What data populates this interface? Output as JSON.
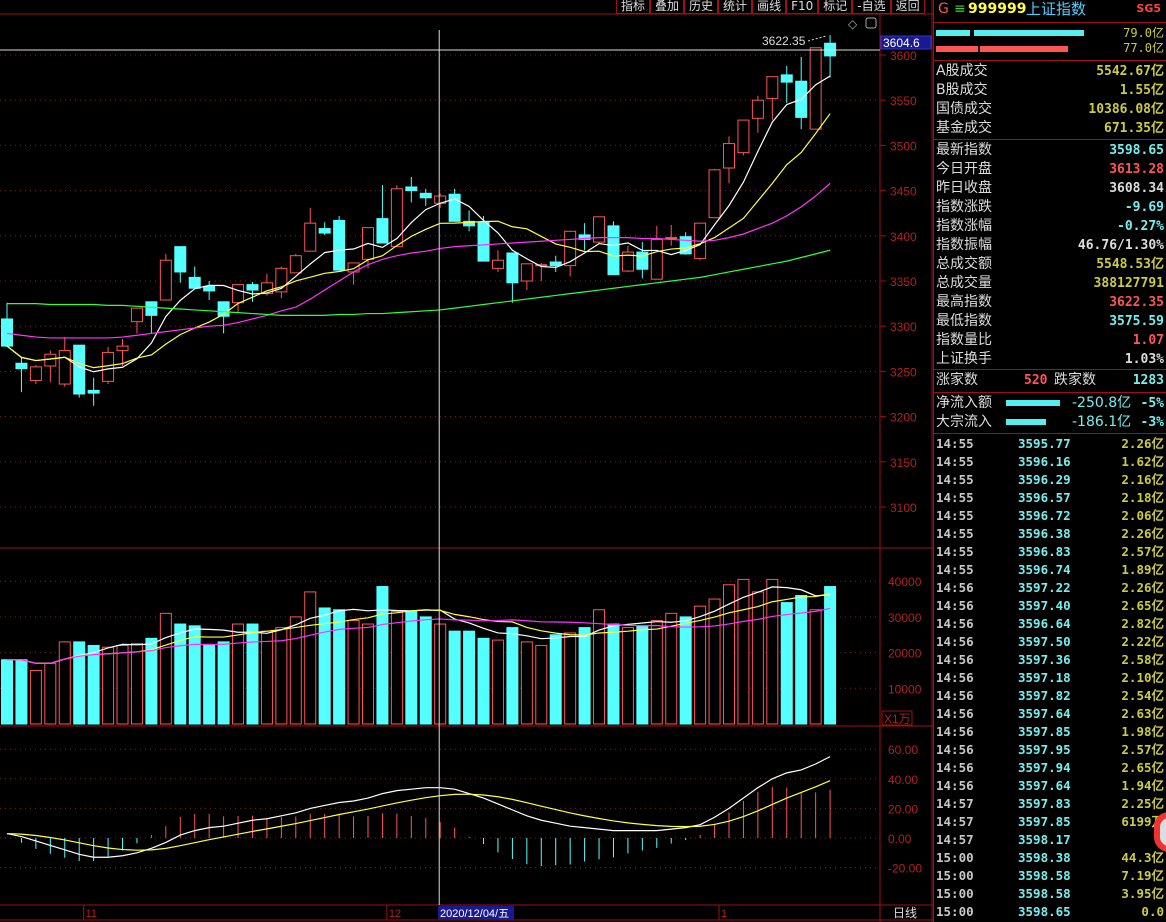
{
  "menu": [
    "指标",
    "叠加",
    "历史",
    "统计",
    "画线",
    "F10",
    "标记",
    "-自选",
    "返回"
  ],
  "header": {
    "market_icon": "G",
    "menu_icon": "≡",
    "code": "999999",
    "name": "上证指数",
    "tag": "SG5"
  },
  "flow_bars": [
    {
      "value": "79.0亿",
      "color": "#5ee"
    },
    {
      "value": "77.0亿",
      "color": "#f55"
    }
  ],
  "turnover": [
    {
      "label": "A股成交",
      "value": "5542.67亿"
    },
    {
      "label": "B股成交",
      "value": "1.55亿"
    },
    {
      "label": "国债成交",
      "value": "10386.08亿"
    },
    {
      "label": "基金成交",
      "value": "671.35亿"
    }
  ],
  "stats": [
    {
      "label": "最新指数",
      "value": "3598.65",
      "color": "#7ee"
    },
    {
      "label": "今日开盘",
      "value": "3613.28",
      "color": "#f55"
    },
    {
      "label": "昨日收盘",
      "value": "3608.34",
      "color": "#ddd"
    },
    {
      "label": "指数涨跌",
      "value": "-9.69",
      "color": "#7ee"
    },
    {
      "label": "指数涨幅",
      "value": "-0.27%",
      "color": "#7ee"
    },
    {
      "label": "指数振幅",
      "value": "46.76/1.30%",
      "color": "#ddd"
    },
    {
      "label": "总成交额",
      "value": "5548.53亿",
      "color": "#cc4"
    },
    {
      "label": "总成交量",
      "value": "388127791",
      "color": "#cc4"
    },
    {
      "label": "最高指数",
      "value": "3622.35",
      "color": "#f55"
    },
    {
      "label": "最低指数",
      "value": "3575.59",
      "color": "#7ee"
    },
    {
      "label": "指数量比",
      "value": "1.07",
      "color": "#f55"
    },
    {
      "label": "上证换手",
      "value": "1.03%",
      "color": "#ddd"
    }
  ],
  "breadth": {
    "up_label": "涨家数",
    "up": "520",
    "down_label": "跌家数",
    "down": "1283"
  },
  "flows": [
    {
      "label": "净流入额",
      "value": "-250.8亿",
      "pct": "-5%"
    },
    {
      "label": "大宗流入",
      "value": "-186.1亿",
      "pct": "-3%"
    }
  ],
  "ticks": [
    [
      "14:55",
      "3595.77",
      "2.26亿"
    ],
    [
      "14:55",
      "3596.16",
      "1.62亿"
    ],
    [
      "14:55",
      "3596.29",
      "2.16亿"
    ],
    [
      "14:55",
      "3596.57",
      "2.18亿"
    ],
    [
      "14:55",
      "3596.72",
      "2.06亿"
    ],
    [
      "14:55",
      "3596.38",
      "2.26亿"
    ],
    [
      "14:55",
      "3596.83",
      "2.57亿"
    ],
    [
      "14:55",
      "3596.74",
      "1.89亿"
    ],
    [
      "14:56",
      "3597.22",
      "2.26亿"
    ],
    [
      "14:56",
      "3597.40",
      "2.65亿"
    ],
    [
      "14:56",
      "3596.64",
      "2.82亿"
    ],
    [
      "14:56",
      "3597.50",
      "2.22亿"
    ],
    [
      "14:56",
      "3597.36",
      "2.58亿"
    ],
    [
      "14:56",
      "3597.18",
      "2.10亿"
    ],
    [
      "14:56",
      "3597.82",
      "2.54亿"
    ],
    [
      "14:56",
      "3597.64",
      "2.63亿"
    ],
    [
      "14:56",
      "3597.85",
      "1.98亿"
    ],
    [
      "14:56",
      "3597.95",
      "2.57亿"
    ],
    [
      "14:56",
      "3597.94",
      "2.65亿"
    ],
    [
      "14:56",
      "3597.64",
      "1.94亿"
    ],
    [
      "14:57",
      "3597.83",
      "2.25亿"
    ],
    [
      "14:57",
      "3597.85",
      "6199万"
    ],
    [
      "14:57",
      "3598.17",
      "0"
    ],
    [
      "15:00",
      "3598.38",
      "44.3亿"
    ],
    [
      "15:00",
      "3598.58",
      "7.19亿"
    ],
    [
      "15:00",
      "3598.58",
      "3.95亿"
    ],
    [
      "15:00",
      "3598.65",
      "0.0"
    ]
  ],
  "chart_data": {
    "type": "candlestick",
    "period_label": "日线",
    "up_color": "#f55",
    "down_color": "#5ff",
    "high_label": "3622.35",
    "last_price_label": "3604.6",
    "cursor_date": "2020/12/04/五",
    "month_labels": [
      {
        "label": "11",
        "index": 6
      },
      {
        "label": "12",
        "index": 27
      },
      {
        "label": "1",
        "index": 50
      }
    ],
    "cursor_index": 30,
    "price_axis": {
      "ticks": [
        3100,
        3150,
        3200,
        3250,
        3300,
        3350,
        3400,
        3450,
        3500,
        3550,
        3600
      ],
      "grid": true
    },
    "ohlc": [
      [
        3308,
        3326,
        3277,
        3278
      ],
      [
        3259,
        3265,
        3227,
        3253
      ],
      [
        3240,
        3257,
        3236,
        3255
      ],
      [
        3256,
        3273,
        3238,
        3269
      ],
      [
        3236,
        3288,
        3233,
        3273
      ],
      [
        3279,
        3279,
        3221,
        3225
      ],
      [
        3229,
        3243,
        3212,
        3226
      ],
      [
        3239,
        3277,
        3236,
        3271
      ],
      [
        3273,
        3286,
        3256,
        3278
      ],
      [
        3305,
        3320,
        3292,
        3320
      ],
      [
        3327,
        3327,
        3292,
        3312
      ],
      [
        3329,
        3380,
        3329,
        3373
      ],
      [
        3388,
        3388,
        3348,
        3360
      ],
      [
        3354,
        3366,
        3342,
        3342
      ],
      [
        3344,
        3350,
        3329,
        3339
      ],
      [
        3327,
        3327,
        3292,
        3311
      ],
      [
        3326,
        3346,
        3315,
        3346
      ],
      [
        3346,
        3349,
        3327,
        3340
      ],
      [
        3336,
        3358,
        3334,
        3348
      ],
      [
        3338,
        3366,
        3331,
        3364
      ],
      [
        3359,
        3380,
        3359,
        3378
      ],
      [
        3383,
        3431,
        3383,
        3414
      ],
      [
        3408,
        3415,
        3401,
        3403
      ],
      [
        3417,
        3422,
        3362,
        3362
      ],
      [
        3360,
        3370,
        3346,
        3370
      ],
      [
        3374,
        3409,
        3364,
        3409
      ],
      [
        3419,
        3456,
        3392,
        3392
      ],
      [
        3388,
        3456,
        3388,
        3452
      ],
      [
        3454,
        3465,
        3437,
        3450
      ],
      [
        3447,
        3452,
        3433,
        3442
      ],
      [
        3436,
        3447,
        3431,
        3444
      ],
      [
        3446,
        3452,
        3416,
        3416
      ],
      [
        3416,
        3428,
        3405,
        3411
      ],
      [
        3415,
        3422,
        3372,
        3372
      ],
      [
        3364,
        3384,
        3360,
        3373
      ],
      [
        3381,
        3381,
        3326,
        3348
      ],
      [
        3350,
        3369,
        3340,
        3369
      ],
      [
        3367,
        3370,
        3350,
        3368
      ],
      [
        3371,
        3378,
        3360,
        3367
      ],
      [
        3367,
        3405,
        3355,
        3405
      ],
      [
        3401,
        3414,
        3384,
        3396
      ],
      [
        3393,
        3421,
        3391,
        3421
      ],
      [
        3411,
        3416,
        3357,
        3357
      ],
      [
        3361,
        3389,
        3360,
        3382
      ],
      [
        3382,
        3393,
        3353,
        3363
      ],
      [
        3352,
        3411,
        3352,
        3396
      ],
      [
        3397,
        3412,
        3389,
        3398
      ],
      [
        3399,
        3404,
        3379,
        3380
      ],
      [
        3375,
        3414,
        3373,
        3414
      ],
      [
        3420,
        3474,
        3420,
        3473
      ],
      [
        3475,
        3510,
        3458,
        3502
      ],
      [
        3492,
        3528,
        3489,
        3528
      ],
      [
        3530,
        3555,
        3514,
        3550
      ],
      [
        3552,
        3576,
        3528,
        3576
      ],
      [
        3578,
        3588,
        3547,
        3570
      ],
      [
        3571,
        3598,
        3518,
        3531
      ],
      [
        3518,
        3608,
        3518,
        3608
      ],
      [
        3613,
        3622,
        3575,
        3599
      ]
    ],
    "ma20": [
      3292,
      3290,
      3288,
      3287,
      3287,
      3287,
      3287,
      3287,
      3288,
      3290,
      3292,
      3294,
      3296,
      3298,
      3300,
      3301,
      3304,
      3308,
      3312,
      3317,
      3321,
      3330,
      3340,
      3350,
      3360,
      3368,
      3374,
      3378,
      3381,
      3383,
      3386,
      3388,
      3389,
      3390,
      3391,
      3392,
      3393,
      3394,
      3395,
      3396,
      3397,
      3398,
      3398,
      3398,
      3397,
      3397,
      3396,
      3395,
      3394,
      3395,
      3398,
      3402,
      3408,
      3414,
      3422,
      3432,
      3444,
      3458
    ],
    "ma60": [
      3325,
      3325,
      3325,
      3324,
      3324,
      3324,
      3324,
      3323,
      3323,
      3322,
      3321,
      3320,
      3319,
      3318,
      3317,
      3316,
      3315,
      3314,
      3313,
      3312,
      3312,
      3312,
      3312,
      3313,
      3313,
      3314,
      3314,
      3315,
      3316,
      3317,
      3318,
      3320,
      3322,
      3324,
      3326,
      3328,
      3330,
      3332,
      3334,
      3336,
      3338,
      3340,
      3342,
      3344,
      3346,
      3348,
      3350,
      3352,
      3354,
      3357,
      3360,
      3363,
      3366,
      3369,
      3372,
      3376,
      3380,
      3384
    ],
    "volume": {
      "unit_label": "X1万",
      "ticks": [
        10000,
        20000,
        30000,
        40000
      ],
      "values": [
        18000,
        18000,
        15000,
        17000,
        23000,
        23000,
        22000,
        21500,
        22000,
        22500,
        24000,
        31000,
        28000,
        27500,
        22000,
        23000,
        28000,
        28000,
        26000,
        27000,
        30000,
        37000,
        32500,
        32000,
        29000,
        28000,
        38500,
        31500,
        31500,
        30000,
        28000,
        26000,
        26000,
        24000,
        23500,
        27000,
        23000,
        22000,
        25000,
        25500,
        27000,
        32000,
        28000,
        27000,
        27500,
        29000,
        31000,
        30000,
        33000,
        35000,
        39000,
        40500,
        37000,
        40500,
        34000,
        36000,
        32000,
        38500
      ]
    },
    "macd": {
      "ticks": [
        60,
        40,
        20,
        0,
        -20
      ],
      "dif": [
        3,
        1,
        -2,
        -5,
        -8,
        -11,
        -13,
        -13,
        -12,
        -10,
        -7,
        -3,
        2,
        5,
        7,
        8,
        10,
        12,
        13,
        15,
        17,
        20,
        22,
        24,
        25,
        27,
        30,
        32,
        33,
        34,
        34,
        33,
        30,
        27,
        23,
        19,
        15,
        12,
        10,
        8,
        7,
        6,
        5,
        5,
        5,
        5,
        6,
        7,
        9,
        14,
        20,
        27,
        34,
        40,
        44,
        46,
        50,
        55
      ]
    }
  }
}
